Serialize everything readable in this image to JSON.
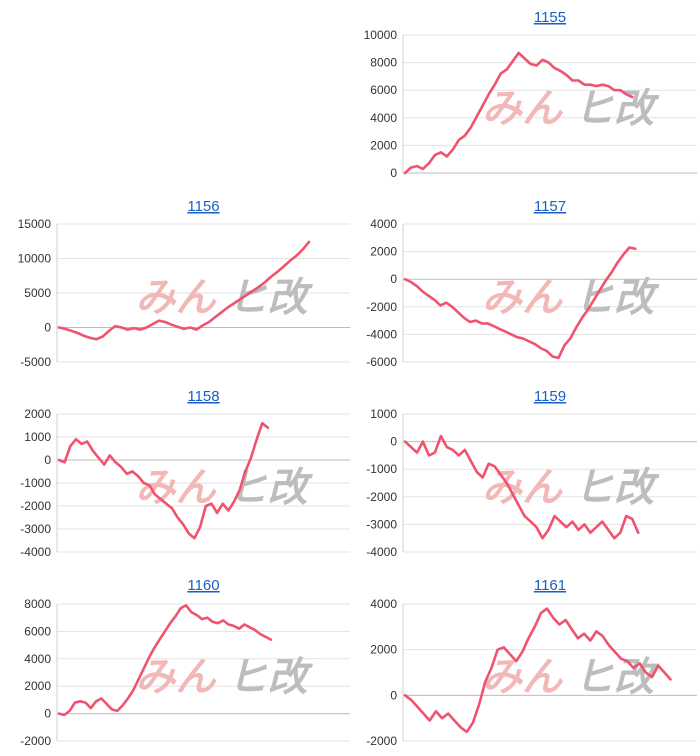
{
  "watermark": {
    "left": "みん",
    "right": "ヒ改"
  },
  "colors": {
    "series": "#f0536e",
    "title": "#1a5fc4",
    "grid": "#e3e3e3"
  },
  "chart_data": [
    {
      "type": "line",
      "title": "1155",
      "ylim": [
        0,
        10000
      ],
      "yticks": [
        0,
        2000,
        4000,
        6000,
        8000,
        10000
      ],
      "grid": true,
      "legend": "none",
      "series": [
        {
          "values": [
            0,
            400,
            500,
            300,
            700,
            1300,
            1500,
            1200,
            1700,
            2400,
            2700,
            3300,
            4100,
            4900,
            5700,
            6400,
            7200,
            7500,
            8100,
            8700,
            8300,
            7900,
            7800,
            8200,
            8000,
            7600,
            7400,
            7100,
            6700,
            6700,
            6400,
            6400,
            6300,
            6400,
            6300,
            6000,
            6000,
            5700,
            5500
          ]
        }
      ]
    },
    {
      "type": "line",
      "title": "1156",
      "ylim": [
        -5000,
        15000
      ],
      "yticks": [
        -5000,
        0,
        5000,
        10000,
        15000
      ],
      "grid": true,
      "legend": "none",
      "series": [
        {
          "values": [
            0,
            -200,
            -500,
            -800,
            -1200,
            -1500,
            -1700,
            -1300,
            -500,
            200,
            0,
            -300,
            -100,
            -300,
            0,
            500,
            1000,
            800,
            400,
            100,
            -200,
            0,
            -300,
            300,
            800,
            1500,
            2200,
            2900,
            3500,
            4100,
            4700,
            5300,
            5900,
            6600,
            7400,
            8100,
            8900,
            9700,
            10400,
            11300,
            12400
          ]
        }
      ]
    },
    {
      "type": "line",
      "title": "1157",
      "ylim": [
        -6000,
        4000
      ],
      "yticks": [
        -6000,
        -4000,
        -2000,
        0,
        2000,
        4000
      ],
      "grid": true,
      "legend": "none",
      "series": [
        {
          "values": [
            0,
            -200,
            -500,
            -900,
            -1200,
            -1500,
            -1900,
            -1700,
            -2000,
            -2400,
            -2800,
            -3100,
            -3000,
            -3200,
            -3200,
            -3400,
            -3600,
            -3800,
            -4000,
            -4200,
            -4300,
            -4500,
            -4700,
            -5000,
            -5200,
            -5600,
            -5700,
            -4800,
            -4300,
            -3500,
            -2800,
            -2200,
            -1500,
            -800,
            -100,
            500,
            1200,
            1800,
            2300,
            2200
          ]
        }
      ]
    },
    {
      "type": "line",
      "title": "1158",
      "ylim": [
        -4000,
        2000
      ],
      "yticks": [
        -4000,
        -3000,
        -2000,
        -1000,
        0,
        1000,
        2000
      ],
      "grid": true,
      "legend": "none",
      "series": [
        {
          "values": [
            0,
            -100,
            600,
            900,
            700,
            800,
            400,
            100,
            -200,
            200,
            -100,
            -300,
            -600,
            -500,
            -700,
            -1000,
            -1100,
            -1500,
            -1700,
            -1900,
            -2100,
            -2500,
            -2800,
            -3200,
            -3400,
            -2900,
            -2000,
            -1900,
            -2300,
            -1900,
            -2200,
            -1800,
            -1300,
            -500,
            100,
            900,
            1600,
            1400
          ]
        }
      ]
    },
    {
      "type": "line",
      "title": "1159",
      "ylim": [
        -4000,
        1000
      ],
      "yticks": [
        -4000,
        -3000,
        -2000,
        -1000,
        0,
        1000
      ],
      "grid": true,
      "legend": "none",
      "series": [
        {
          "values": [
            0,
            -200,
            -400,
            0,
            -500,
            -400,
            200,
            -200,
            -300,
            -500,
            -300,
            -700,
            -1100,
            -1300,
            -800,
            -900,
            -1200,
            -1500,
            -1900,
            -2300,
            -2700,
            -2900,
            -3100,
            -3500,
            -3200,
            -2700,
            -2900,
            -3100,
            -2900,
            -3200,
            -3000,
            -3300,
            -3100,
            -2900,
            -3200,
            -3500,
            -3300,
            -2700,
            -2800,
            -3300
          ]
        }
      ]
    },
    {
      "type": "line",
      "title": "1160",
      "ylim": [
        -2000,
        8000
      ],
      "yticks": [
        -2000,
        0,
        2000,
        4000,
        6000,
        8000
      ],
      "grid": true,
      "legend": "none",
      "series": [
        {
          "values": [
            0,
            -100,
            200,
            800,
            900,
            800,
            400,
            900,
            1100,
            700,
            300,
            200,
            600,
            1100,
            1700,
            2500,
            3300,
            4100,
            4800,
            5400,
            6000,
            6600,
            7100,
            7700,
            7900,
            7400,
            7200,
            6900,
            7000,
            6700,
            6600,
            6800,
            6500,
            6400,
            6200,
            6500,
            6300,
            6100,
            5800,
            5600,
            5400
          ]
        }
      ]
    },
    {
      "type": "line",
      "title": "1161",
      "ylim": [
        -2000,
        4000
      ],
      "yticks": [
        -2000,
        0,
        2000,
        4000
      ],
      "grid": true,
      "legend": "none",
      "series": [
        {
          "values": [
            0,
            -200,
            -500,
            -800,
            -1100,
            -700,
            -1000,
            -800,
            -1100,
            -1400,
            -1600,
            -1200,
            -400,
            600,
            1200,
            2000,
            2100,
            1800,
            1500,
            1900,
            2500,
            3000,
            3600,
            3800,
            3400,
            3100,
            3300,
            2900,
            2500,
            2700,
            2400,
            2800,
            2600,
            2200,
            1900,
            1600,
            1500,
            1200,
            1400,
            1000,
            800,
            1300,
            1000,
            700
          ]
        }
      ]
    }
  ]
}
